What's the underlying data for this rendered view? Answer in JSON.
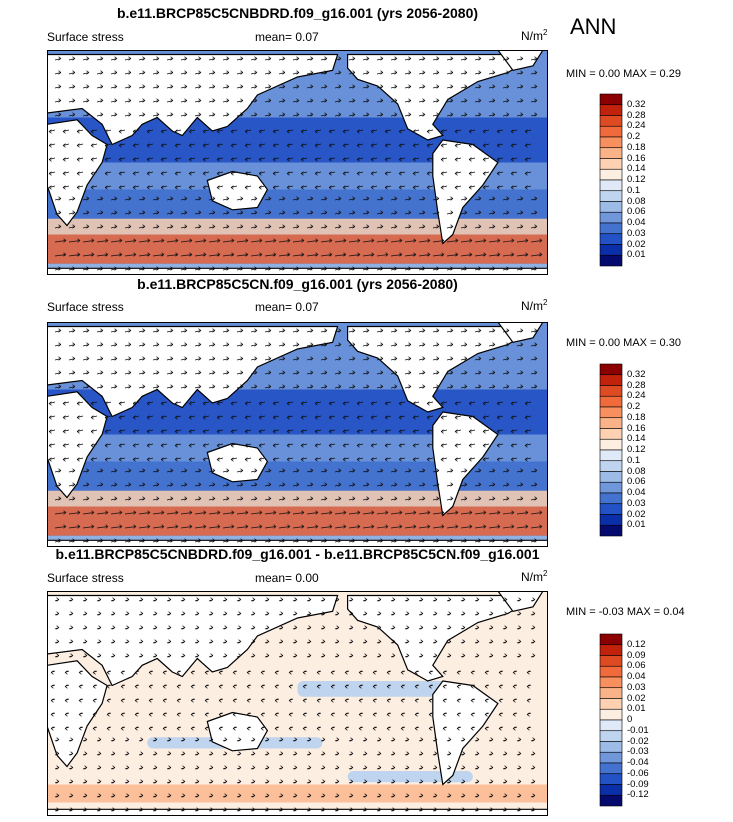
{
  "season_label": "ANN",
  "panels": [
    {
      "title": "b.e11.BRCP85C5CNBDRD.f09_g16.001 (yrs 2056-2080)",
      "variable": "Surface stress",
      "mean_label": "mean=",
      "mean_value": "0.07",
      "units": "N/m",
      "units_sup": "2",
      "min_label": "MIN =",
      "min_value": "0.00",
      "max_label": "MAX =",
      "max_value": "0.29",
      "colorbar_levels": [
        "0.32",
        "0.28",
        "0.24",
        "0.2",
        "0.18",
        "0.16",
        "0.14",
        "0.12",
        "0.1",
        "0.08",
        "0.06",
        "0.04",
        "0.03",
        "0.02",
        "0.01"
      ],
      "colorbar_colors": [
        "#8b0000",
        "#c1220b",
        "#de4a22",
        "#f06a3c",
        "#f7905e",
        "#fab388",
        "#fdd1b2",
        "#fdeee2",
        "#dfe9f7",
        "#bed4ef",
        "#9cbbe6",
        "#6f97da",
        "#4472cf",
        "#2351c6",
        "#0a2fa8",
        "#050a6e"
      ]
    },
    {
      "title": "b.e11.BRCP85C5CN.f09_g16.001 (yrs 2056-2080)",
      "variable": "Surface stress",
      "mean_label": "mean=",
      "mean_value": "0.07",
      "units": "N/m",
      "units_sup": "2",
      "min_label": "MIN =",
      "min_value": "0.00",
      "max_label": "MAX =",
      "max_value": "0.30",
      "colorbar_levels": [
        "0.32",
        "0.28",
        "0.24",
        "0.2",
        "0.18",
        "0.16",
        "0.14",
        "0.12",
        "0.1",
        "0.08",
        "0.06",
        "0.04",
        "0.03",
        "0.02",
        "0.01"
      ],
      "colorbar_colors": [
        "#8b0000",
        "#c1220b",
        "#de4a22",
        "#f06a3c",
        "#f7905e",
        "#fab388",
        "#fdd1b2",
        "#fdeee2",
        "#dfe9f7",
        "#bed4ef",
        "#9cbbe6",
        "#6f97da",
        "#4472cf",
        "#2351c6",
        "#0a2fa8",
        "#050a6e"
      ]
    },
    {
      "title": "b.e11.BRCP85C5CNBDRD.f09_g16.001 - b.e11.BRCP85C5CN.f09_g16.001",
      "variable": "Surface stress",
      "mean_label": "mean=",
      "mean_value": "0.00",
      "units": "N/m",
      "units_sup": "2",
      "min_label": "MIN =",
      "min_value": "-0.03",
      "max_label": "MAX =",
      "max_value": "0.04",
      "colorbar_levels": [
        "0.12",
        "0.09",
        "0.06",
        "0.04",
        "0.03",
        "0.02",
        "0.01",
        "0",
        "-0.01",
        "-0.02",
        "-0.03",
        "-0.04",
        "-0.06",
        "-0.09",
        "-0.12"
      ],
      "colorbar_colors": [
        "#8b0000",
        "#c1220b",
        "#de4a22",
        "#f06a3c",
        "#f7905e",
        "#fab388",
        "#fdd1b2",
        "#fdeee2",
        "#dfe9f7",
        "#bed4ef",
        "#9cbbe6",
        "#6f97da",
        "#4472cf",
        "#2351c6",
        "#0a2fa8",
        "#050a6e"
      ]
    }
  ],
  "chart_data": [
    {
      "type": "heatmap",
      "title": "b.e11.BRCP85C5CNBDRD.f09_g16.001 (yrs 2056-2080)",
      "field": "Surface stress",
      "units": "N/m2",
      "mean": 0.07,
      "min": 0.0,
      "max": 0.29,
      "levels": [
        0.01,
        0.02,
        0.03,
        0.04,
        0.06,
        0.08,
        0.1,
        0.12,
        0.14,
        0.16,
        0.18,
        0.2,
        0.24,
        0.28,
        0.32
      ]
    },
    {
      "type": "heatmap",
      "title": "b.e11.BRCP85C5CN.f09_g16.001 (yrs 2056-2080)",
      "field": "Surface stress",
      "units": "N/m2",
      "mean": 0.07,
      "min": 0.0,
      "max": 0.3,
      "levels": [
        0.01,
        0.02,
        0.03,
        0.04,
        0.06,
        0.08,
        0.1,
        0.12,
        0.14,
        0.16,
        0.18,
        0.2,
        0.24,
        0.28,
        0.32
      ]
    },
    {
      "type": "heatmap",
      "title": "b.e11.BRCP85C5CNBDRD.f09_g16.001 - b.e11.BRCP85C5CN.f09_g16.001",
      "field": "Surface stress",
      "units": "N/m2",
      "mean": 0.0,
      "min": -0.03,
      "max": 0.04,
      "levels": [
        -0.12,
        -0.09,
        -0.06,
        -0.04,
        -0.03,
        -0.02,
        -0.01,
        0,
        0.01,
        0.02,
        0.03,
        0.04,
        0.06,
        0.09,
        0.12
      ]
    }
  ]
}
